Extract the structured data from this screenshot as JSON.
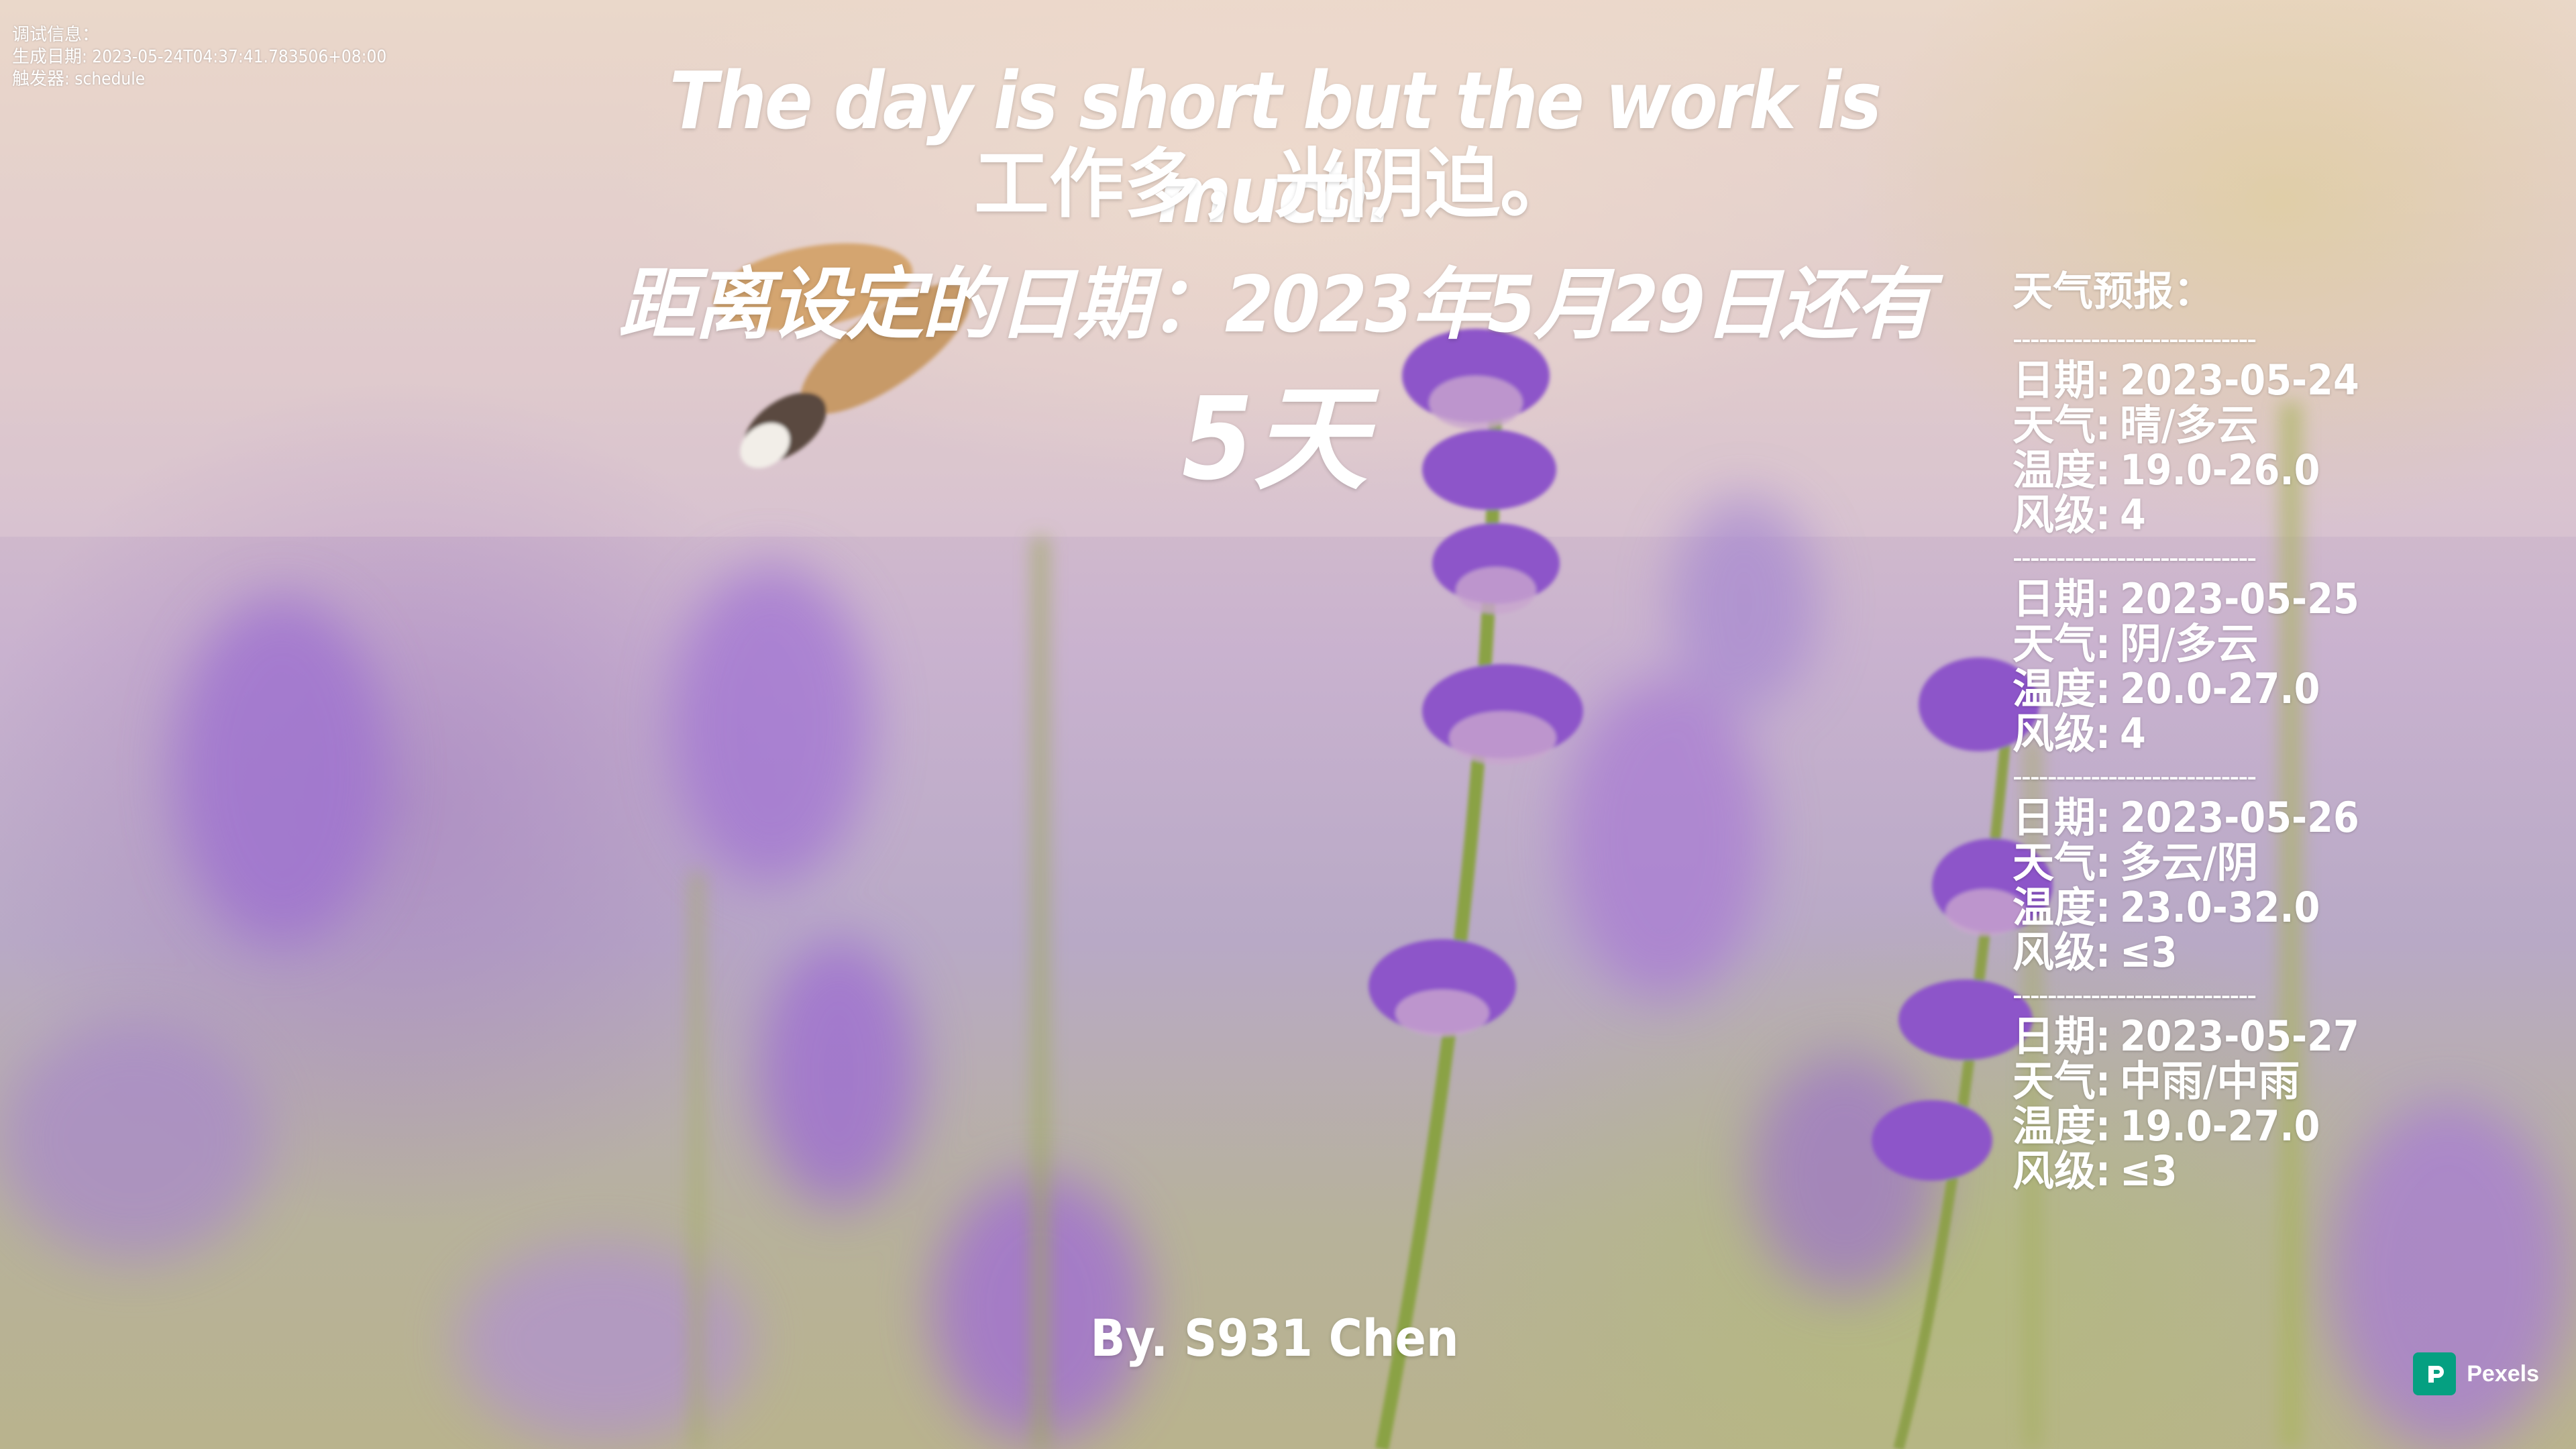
{
  "debug": {
    "title": "调试信息：",
    "generated": "生成日期: 2023-05-24T04:37:41.783506+08:00",
    "trigger": "触发器: schedule"
  },
  "quote": {
    "english": "The day is short but the work is much.",
    "chinese": "工作多，光阴迫。"
  },
  "countdown": {
    "label": "距离设定的日期：2023年5月29日还有",
    "days": "5天"
  },
  "weather": {
    "title": "天气预报：",
    "separator": "----------------------------",
    "keys": {
      "date": "日期",
      "weather": "天气",
      "temp": "温度",
      "wind": "风级",
      "colon": ":"
    },
    "days": [
      {
        "date": "2023-05-24",
        "weather": "晴/多云",
        "temp": "19.0-26.0",
        "wind": "4"
      },
      {
        "date": "2023-05-25",
        "weather": "阴/多云",
        "temp": "20.0-27.0",
        "wind": "4"
      },
      {
        "date": "2023-05-26",
        "weather": "多云/阴",
        "temp": "23.0-32.0",
        "wind": "≤3"
      },
      {
        "date": "2023-05-27",
        "weather": "中雨/中雨",
        "temp": "19.0-27.0",
        "wind": "≤3"
      }
    ]
  },
  "author": "By. S931 Chen",
  "credit": {
    "label": "Pexels",
    "brand_color": "#05a081"
  }
}
